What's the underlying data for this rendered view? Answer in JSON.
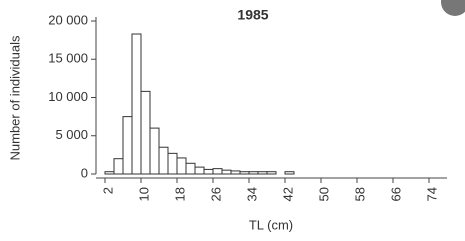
{
  "chart_data": {
    "type": "histogram",
    "title": "1985",
    "x_label": "TL (cm)",
    "y_label": "Number of individuals",
    "bins": [
      2,
      4,
      6,
      8,
      10,
      12,
      14,
      16,
      18,
      20,
      22,
      24,
      26,
      28,
      30,
      32,
      34,
      36,
      38,
      40,
      42,
      44
    ],
    "values": [
      300,
      2000,
      7500,
      18300,
      10800,
      6000,
      3500,
      2700,
      2100,
      1400,
      900,
      600,
      700,
      500,
      400,
      300,
      300,
      300,
      300,
      0,
      300
    ],
    "color": "#ffffff",
    "edge_color": "#333333",
    "xlim": [
      0,
      78
    ],
    "xticks": [
      2,
      10,
      18,
      26,
      34,
      42,
      50,
      58,
      66,
      74
    ],
    "ylim": [
      0,
      20000
    ],
    "yticks": [
      0,
      {
        "value": 5000,
        "label": "5 000"
      },
      {
        "value": 10000,
        "label": "10 000"
      },
      {
        "value": 15000,
        "label": "15 000"
      },
      {
        "value": 20000,
        "label": "20 000"
      }
    ]
  }
}
